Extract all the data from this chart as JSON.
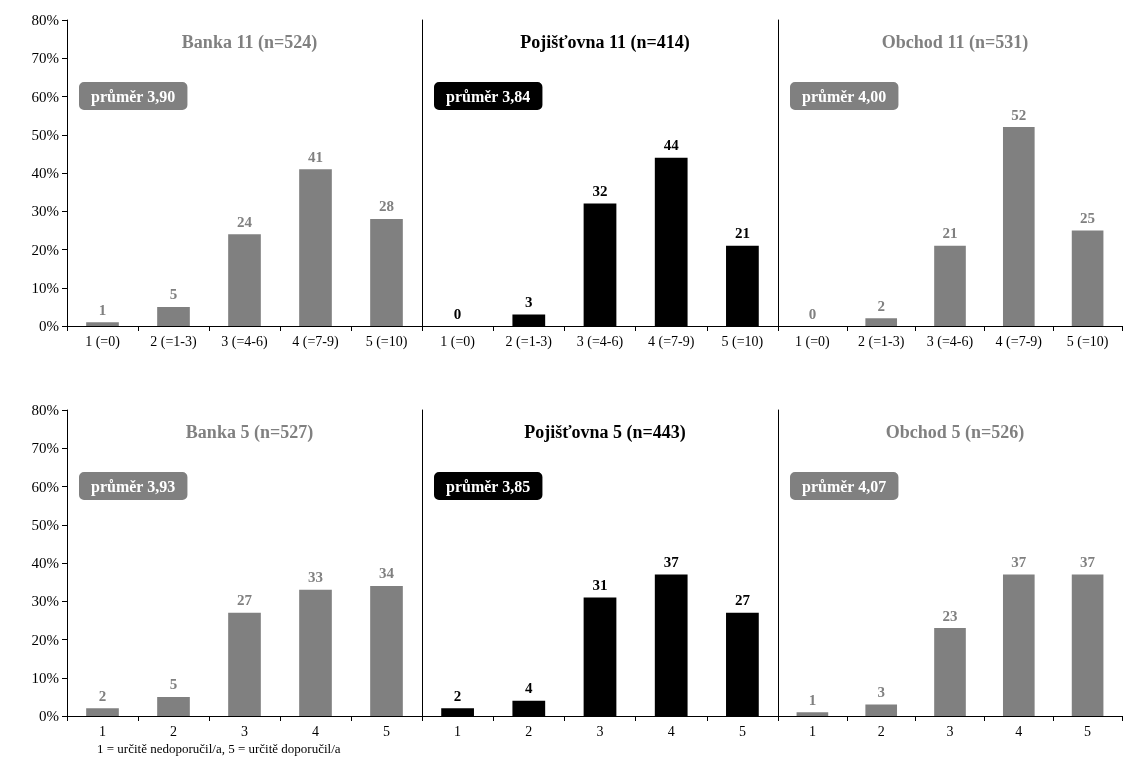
{
  "chart_data": [
    {
      "type": "bar",
      "title": "Banka 11 (n=524)",
      "categories": [
        "1 (=0)",
        "2 (=1-3)",
        "3 (=4-6)",
        "4 (=7-9)",
        "5 (=10)"
      ],
      "values": [
        1,
        5,
        24,
        41,
        28
      ],
      "color": "#808080",
      "data_labels": true,
      "annotations": [
        "průměr 3,90"
      ],
      "ylim": [
        0,
        80
      ],
      "yticks": [
        {
          "value": 0,
          "label": "0%"
        },
        {
          "value": 10,
          "label": "10%"
        },
        {
          "value": 20,
          "label": "20%"
        },
        {
          "value": 30,
          "label": "30%"
        },
        {
          "value": 40,
          "label": "40%"
        },
        {
          "value": 50,
          "label": "50%"
        },
        {
          "value": 60,
          "label": "60%"
        },
        {
          "value": 70,
          "label": "70%"
        },
        {
          "value": 80,
          "label": "80%"
        }
      ]
    },
    {
      "type": "bar",
      "title": "Pojišťovna 11 (n=414)",
      "categories": [
        "1 (=0)",
        "2 (=1-3)",
        "3 (=4-6)",
        "4 (=7-9)",
        "5 (=10)"
      ],
      "values": [
        0,
        3,
        32,
        44,
        21
      ],
      "color": "#000000",
      "data_labels": true,
      "annotations": [
        "průměr 3,84"
      ],
      "ylim": [
        0,
        80
      ],
      "tick_labels": "x"
    },
    {
      "type": "bar",
      "title": "Obchod 11 (n=531)",
      "categories": [
        "1 (=0)",
        "2 (=1-3)",
        "3 (=4-6)",
        "4 (=7-9)",
        "5 (=10)"
      ],
      "values": [
        0,
        2,
        21,
        52,
        25
      ],
      "color": "#808080",
      "data_labels": true,
      "annotations": [
        "průměr 4,00"
      ],
      "ylim": [
        0,
        80
      ],
      "tick_labels": "x"
    },
    {
      "type": "bar",
      "title": "Banka 5 (n=527)",
      "categories": [
        "1",
        "2",
        "3",
        "4",
        "5"
      ],
      "values": [
        2,
        5,
        27,
        33,
        34
      ],
      "color": "#808080",
      "data_labels": true,
      "annotations": [
        "průměr 3,93",
        "1 = určitě nedoporučil/a, 5 = určitě doporučil/a"
      ],
      "ylim": [
        0,
        80
      ],
      "yticks": [
        {
          "value": 0,
          "label": "0%"
        },
        {
          "value": 10,
          "label": "10%"
        },
        {
          "value": 20,
          "label": "20%"
        },
        {
          "value": 30,
          "label": "30%"
        },
        {
          "value": 40,
          "label": "40%"
        },
        {
          "value": 50,
          "label": "50%"
        },
        {
          "value": 60,
          "label": "60%"
        },
        {
          "value": 70,
          "label": "70%"
        },
        {
          "value": 80,
          "label": "80%"
        }
      ]
    },
    {
      "type": "bar",
      "title": "Pojišťovna 5 (n=443)",
      "categories": [
        "1",
        "2",
        "3",
        "4",
        "5"
      ],
      "values": [
        2,
        4,
        31,
        37,
        27
      ],
      "color": "#000000",
      "data_labels": true,
      "annotations": [
        "průměr 3,85"
      ],
      "ylim": [
        0,
        80
      ],
      "tick_labels": "x"
    },
    {
      "type": "bar",
      "title": "Obchod 5 (n=526)",
      "categories": [
        "1",
        "2",
        "3",
        "4",
        "5"
      ],
      "values": [
        1,
        3,
        23,
        37,
        37
      ],
      "color": "#808080",
      "data_labels": true,
      "annotations": [
        "průměr 4,07"
      ],
      "ylim": [
        0,
        80
      ],
      "tick_labels": "x"
    }
  ]
}
